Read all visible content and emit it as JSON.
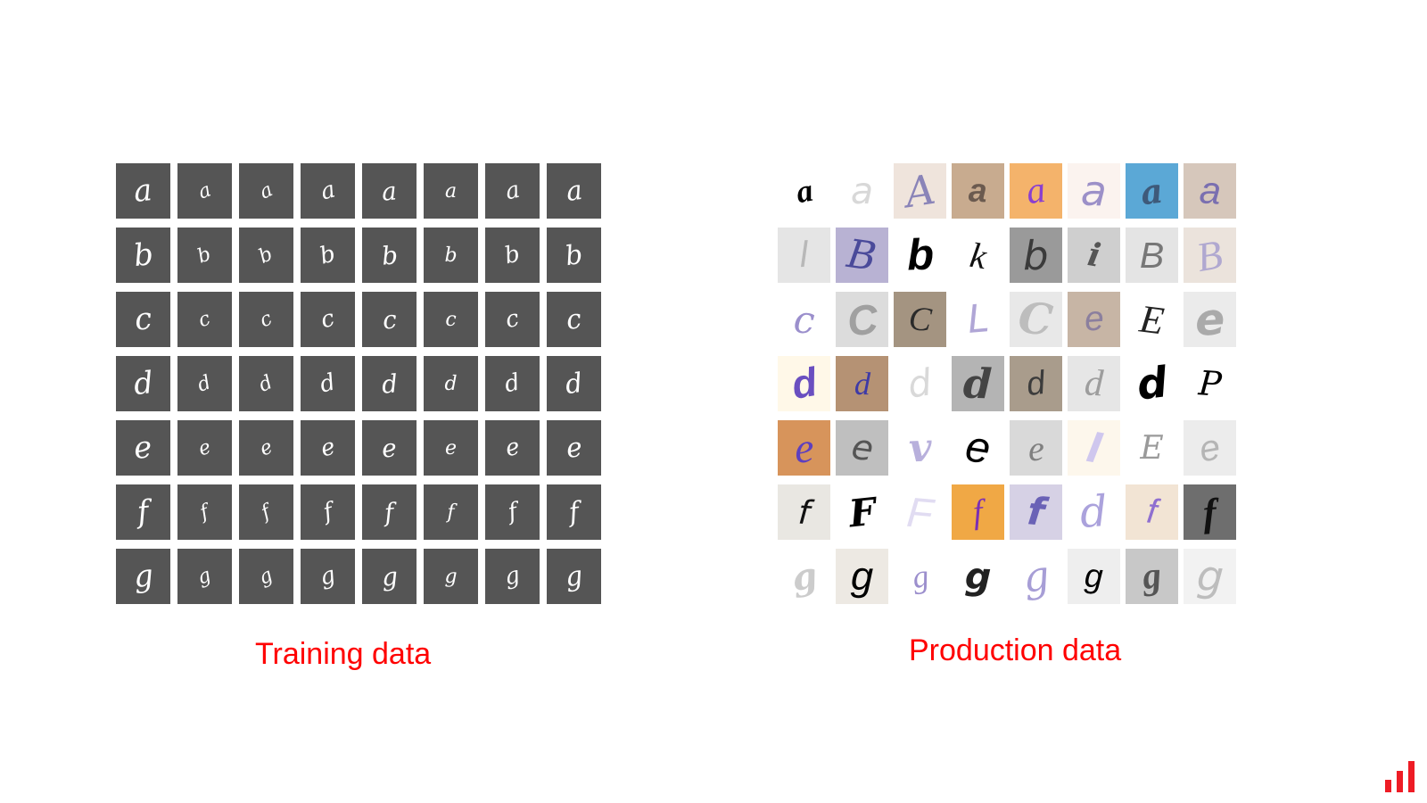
{
  "training": {
    "caption": "Training data",
    "rows": [
      {
        "letter": "a",
        "tiles": [
          "a",
          "a",
          "a",
          "a",
          "a",
          "a",
          "a",
          "a"
        ]
      },
      {
        "letter": "b",
        "tiles": [
          "b",
          "b",
          "b",
          "b",
          "b",
          "b",
          "b",
          "b"
        ]
      },
      {
        "letter": "c",
        "tiles": [
          "c",
          "c",
          "c",
          "c",
          "c",
          "c",
          "c",
          "c"
        ]
      },
      {
        "letter": "d",
        "tiles": [
          "d",
          "d",
          "d",
          "d",
          "d",
          "d",
          "d",
          "d"
        ]
      },
      {
        "letter": "e",
        "tiles": [
          "e",
          "e",
          "e",
          "e",
          "e",
          "e",
          "e",
          "e"
        ]
      },
      {
        "letter": "f",
        "tiles": [
          "f",
          "f",
          "f",
          "f",
          "f",
          "f",
          "f",
          "f"
        ]
      },
      {
        "letter": "g",
        "tiles": [
          "g",
          "g",
          "g",
          "g",
          "g",
          "g",
          "g",
          "g"
        ]
      }
    ],
    "tile_color": "#555555",
    "glyph_color": "#ffffff"
  },
  "production": {
    "caption": "Production data",
    "rows": [
      [
        {
          "glyph": "a",
          "bg": "#ffffff",
          "fg": "#000000"
        },
        {
          "glyph": "a",
          "bg": "#ffffff",
          "fg": "#d8d8d8"
        },
        {
          "glyph": "A",
          "bg": "#efe4dc",
          "fg": "#8a84b8"
        },
        {
          "glyph": "a",
          "bg": "#c8ab8f",
          "fg": "#6b5a4f"
        },
        {
          "glyph": "a",
          "bg": "#f4b36b",
          "fg": "#8a3fd0"
        },
        {
          "glyph": "a",
          "bg": "#fbf3ef",
          "fg": "#9c90c8"
        },
        {
          "glyph": "a",
          "bg": "#5ba8d6",
          "fg": "#3e5a7a"
        },
        {
          "glyph": "a",
          "bg": "#d6c7bb",
          "fg": "#7a6fb0"
        }
      ],
      [
        {
          "glyph": "l",
          "bg": "#e5e5e5",
          "fg": "#b8b8b8"
        },
        {
          "glyph": "B",
          "bg": "#b8b2d3",
          "fg": "#4a4a9a"
        },
        {
          "glyph": "b",
          "bg": "#ffffff",
          "fg": "#000000"
        },
        {
          "glyph": "k",
          "bg": "#ffffff",
          "fg": "#111111"
        },
        {
          "glyph": "b",
          "bg": "#9a9a9a",
          "fg": "#3a3a3a"
        },
        {
          "glyph": "i",
          "bg": "#cfcfcf",
          "fg": "#555555"
        },
        {
          "glyph": "B",
          "bg": "#e4e4e4",
          "fg": "#777777"
        },
        {
          "glyph": "B",
          "bg": "#ebe3dc",
          "fg": "#b0a8d0"
        }
      ],
      [
        {
          "glyph": "c",
          "bg": "#ffffff",
          "fg": "#9b8fcc"
        },
        {
          "glyph": "C",
          "bg": "#dcdcdc",
          "fg": "#a0a0a0"
        },
        {
          "glyph": "C",
          "bg": "#a49481",
          "fg": "#2a2a2a"
        },
        {
          "glyph": "L",
          "bg": "#ffffff",
          "fg": "#b0a6d6"
        },
        {
          "glyph": "C",
          "bg": "#e8e8e8",
          "fg": "#bdbdbd"
        },
        {
          "glyph": "e",
          "bg": "#c7b5a5",
          "fg": "#8b7f9e"
        },
        {
          "glyph": "E",
          "bg": "#ffffff",
          "fg": "#222222"
        },
        {
          "glyph": "e",
          "bg": "#ebebeb",
          "fg": "#aaaaaa"
        }
      ],
      [
        {
          "glyph": "d",
          "bg": "#fff8e8",
          "fg": "#6a4fc0"
        },
        {
          "glyph": "d",
          "bg": "#b59274",
          "fg": "#3e3aa6"
        },
        {
          "glyph": "d",
          "bg": "#ffffff",
          "fg": "#d9d9d9"
        },
        {
          "glyph": "d",
          "bg": "#b4b4b4",
          "fg": "#444444"
        },
        {
          "glyph": "d",
          "bg": "#a99c8c",
          "fg": "#3c3c3c"
        },
        {
          "glyph": "d",
          "bg": "#e6e6e6",
          "fg": "#9d9d9d"
        },
        {
          "glyph": "d",
          "bg": "#ffffff",
          "fg": "#000000"
        },
        {
          "glyph": "P",
          "bg": "#ffffff",
          "fg": "#000000"
        }
      ],
      [
        {
          "glyph": "e",
          "bg": "#d7945b",
          "fg": "#5d3fbf"
        },
        {
          "glyph": "e",
          "bg": "#bfbfbf",
          "fg": "#555555"
        },
        {
          "glyph": "v",
          "bg": "#ffffff",
          "fg": "#b8b0dc"
        },
        {
          "glyph": "e",
          "bg": "#ffffff",
          "fg": "#000000"
        },
        {
          "glyph": "e",
          "bg": "#d9d9d9",
          "fg": "#808080"
        },
        {
          "glyph": "l",
          "bg": "#fdf7ec",
          "fg": "#cfc7ee"
        },
        {
          "glyph": "E",
          "bg": "#ffffff",
          "fg": "#9a9a9a"
        },
        {
          "glyph": "e",
          "bg": "#ececec",
          "fg": "#b5b5b5"
        }
      ],
      [
        {
          "glyph": "f",
          "bg": "#e9e7e2",
          "fg": "#111111"
        },
        {
          "glyph": "F",
          "bg": "#ffffff",
          "fg": "#000000"
        },
        {
          "glyph": "F",
          "bg": "#ffffff",
          "fg": "#e1dcf2"
        },
        {
          "glyph": "f",
          "bg": "#f0a845",
          "fg": "#7a2fb5"
        },
        {
          "glyph": "f",
          "bg": "#d6d1e5",
          "fg": "#6a62b6"
        },
        {
          "glyph": "d",
          "bg": "#ffffff",
          "fg": "#aba2dc"
        },
        {
          "glyph": "f",
          "bg": "#f2e4d4",
          "fg": "#8f6fd0"
        },
        {
          "glyph": "f",
          "bg": "#6e6e6e",
          "fg": "#111111"
        }
      ],
      [
        {
          "glyph": "g",
          "bg": "#ffffff",
          "fg": "#cccccc"
        },
        {
          "glyph": "g",
          "bg": "#ede9e3",
          "fg": "#000000"
        },
        {
          "glyph": "g",
          "bg": "#ffffff",
          "fg": "#9c8fcd"
        },
        {
          "glyph": "g",
          "bg": "#ffffff",
          "fg": "#222222"
        },
        {
          "glyph": "g",
          "bg": "#ffffff",
          "fg": "#a79ed6"
        },
        {
          "glyph": "g",
          "bg": "#eeeeee",
          "fg": "#000000"
        },
        {
          "glyph": "g",
          "bg": "#c8c8c8",
          "fg": "#555555"
        },
        {
          "glyph": "g",
          "bg": "#f2f2f2",
          "fg": "#bdbdbd"
        }
      ]
    ]
  },
  "logo": {
    "icon": "bar-chart-logo-icon",
    "color": "#ee1c25"
  }
}
